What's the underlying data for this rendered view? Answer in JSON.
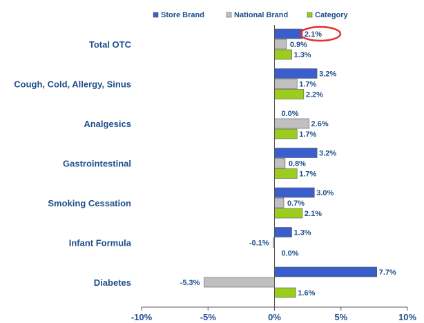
{
  "chart_data": {
    "type": "bar",
    "orientation": "horizontal",
    "categories": [
      "Total OTC",
      "Cough, Cold, Allergy, Sinus",
      "Analgesics",
      "Gastrointestinal",
      "Smoking Cessation",
      "Infant Formula",
      "Diabetes"
    ],
    "series": [
      {
        "name": "Store Brand",
        "color": "#3a5fcd",
        "values": [
          2.1,
          3.2,
          0.0,
          3.2,
          3.0,
          1.3,
          7.7
        ],
        "labels": [
          "2.1%",
          "3.2%",
          "0.0%",
          "3.2%",
          "3.0%",
          "1.3%",
          "7.7%"
        ]
      },
      {
        "name": "National Brand",
        "color": "#c0c0c0",
        "values": [
          0.9,
          1.7,
          2.6,
          0.8,
          0.7,
          -0.1,
          -5.3
        ],
        "labels": [
          "0.9%",
          "1.7%",
          "2.6%",
          "0.8%",
          "0.7%",
          "-0.1%",
          "-5.3%"
        ]
      },
      {
        "name": "Category",
        "color": "#9acd1e",
        "values": [
          1.3,
          2.2,
          1.7,
          1.7,
          2.1,
          0.0,
          1.6
        ],
        "labels": [
          "1.3%",
          "2.2%",
          "1.7%",
          "1.7%",
          "2.1%",
          "0.0%",
          "1.6%"
        ]
      }
    ],
    "xlim": [
      -10,
      10
    ],
    "ticks": [
      -10,
      -5,
      0,
      5,
      10
    ],
    "tick_labels": [
      "-10%",
      "-5%",
      "0%",
      "5%",
      "10%"
    ],
    "legend": "top",
    "grid": false,
    "annotation": {
      "type": "circle",
      "target": "Total OTC / Store Brand",
      "label": "2.1%",
      "color": "#e03030"
    }
  }
}
